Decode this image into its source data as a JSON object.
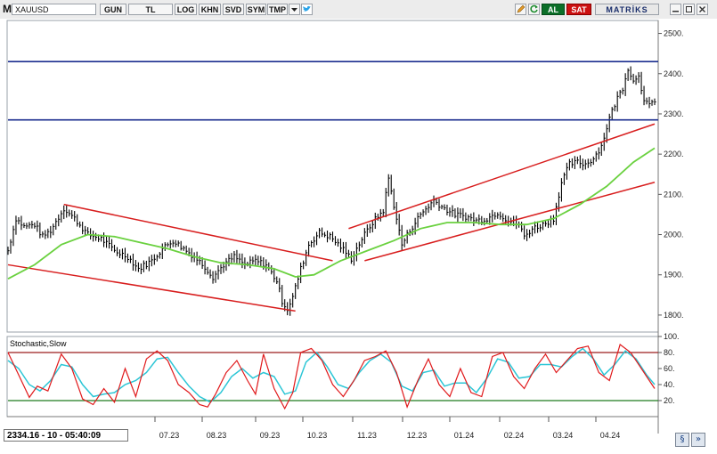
{
  "toolbar": {
    "logo": "M",
    "symbol": "XAUUSD",
    "buttons": [
      "GUN",
      "TL",
      "LOG",
      "KHN",
      "SVD",
      "SYM",
      "TMP"
    ],
    "buy": "AL",
    "sell": "SAT",
    "brand": "MATRİKS",
    "icons": [
      "dropdown-arrow-icon",
      "twitter-bird-icon",
      "pencil-icon",
      "refresh-icon",
      "minimize-icon",
      "restore-icon",
      "close-icon"
    ]
  },
  "price_axis": {
    "ticks": [
      2500,
      2400,
      2300,
      2200,
      2100,
      2000,
      1900,
      1800
    ]
  },
  "stoch_panel": {
    "title": "Stochastic,Slow",
    "ticks": [
      100,
      80,
      60,
      40,
      20
    ],
    "ticks_display": [
      "100.",
      "80.",
      "60.",
      "40.",
      "20."
    ],
    "upper_level": 80,
    "lower_level": 20
  },
  "x_axis": {
    "labels": [
      "07.23",
      "08.23",
      "09.23",
      "10.23",
      "11.23",
      "12.23",
      "01.24",
      "02.24",
      "03.24",
      "04.24"
    ]
  },
  "status": {
    "text": "2334.16 - 10 - 05:40:09"
  },
  "chart_data": {
    "type": "line",
    "note_series": "daily OHLC bars XAUUSD with moving average (green), trend channels (red), horizontal levels (blue), slow stochastic",
    "ylim": [
      1760,
      2530
    ],
    "horizontal_levels": [
      2430,
      2285
    ],
    "price_path": [
      [
        0,
        1960
      ],
      [
        3,
        2040
      ],
      [
        6,
        2020
      ],
      [
        10,
        2025
      ],
      [
        13,
        1995
      ],
      [
        16,
        2010
      ],
      [
        21,
        2065
      ],
      [
        25,
        2040
      ],
      [
        30,
        2000
      ],
      [
        35,
        1990
      ],
      [
        40,
        1960
      ],
      [
        45,
        1945
      ],
      [
        49,
        1915
      ],
      [
        54,
        1935
      ],
      [
        58,
        1965
      ],
      [
        62,
        1985
      ],
      [
        66,
        1965
      ],
      [
        70,
        1945
      ],
      [
        74,
        1920
      ],
      [
        77,
        1895
      ],
      [
        81,
        1925
      ],
      [
        85,
        1945
      ],
      [
        89,
        1925
      ],
      [
        93,
        1935
      ],
      [
        97,
        1925
      ],
      [
        101,
        1885
      ],
      [
        103,
        1835
      ],
      [
        105,
        1815
      ],
      [
        107,
        1845
      ],
      [
        110,
        1915
      ],
      [
        113,
        1975
      ],
      [
        117,
        2005
      ],
      [
        121,
        1995
      ],
      [
        125,
        1970
      ],
      [
        129,
        1940
      ],
      [
        133,
        1990
      ],
      [
        137,
        2030
      ],
      [
        141,
        2060
      ],
      [
        143,
        2140
      ],
      [
        146,
        2040
      ],
      [
        148,
        1975
      ],
      [
        151,
        2010
      ],
      [
        155,
        2050
      ],
      [
        160,
        2085
      ],
      [
        164,
        2065
      ],
      [
        168,
        2050
      ],
      [
        172,
        2045
      ],
      [
        176,
        2035
      ],
      [
        180,
        2040
      ],
      [
        184,
        2055
      ],
      [
        188,
        2035
      ],
      [
        192,
        2025
      ],
      [
        194,
        1995
      ],
      [
        197,
        2015
      ],
      [
        201,
        2025
      ],
      [
        205,
        2040
      ],
      [
        208,
        2130
      ],
      [
        211,
        2175
      ],
      [
        214,
        2180
      ],
      [
        217,
        2175
      ],
      [
        220,
        2190
      ],
      [
        223,
        2220
      ],
      [
        226,
        2290
      ],
      [
        229,
        2340
      ],
      [
        231,
        2365
      ],
      [
        233,
        2415
      ],
      [
        235,
        2380
      ],
      [
        237,
        2400
      ],
      [
        239,
        2330
      ],
      [
        241,
        2320
      ],
      [
        243,
        2335
      ]
    ],
    "ma_path": [
      [
        0,
        1890
      ],
      [
        10,
        1925
      ],
      [
        20,
        1975
      ],
      [
        30,
        2000
      ],
      [
        40,
        1995
      ],
      [
        50,
        1980
      ],
      [
        60,
        1965
      ],
      [
        70,
        1945
      ],
      [
        80,
        1930
      ],
      [
        90,
        1925
      ],
      [
        100,
        1915
      ],
      [
        108,
        1895
      ],
      [
        115,
        1900
      ],
      [
        125,
        1935
      ],
      [
        135,
        1960
      ],
      [
        145,
        1985
      ],
      [
        155,
        2015
      ],
      [
        165,
        2030
      ],
      [
        175,
        2030
      ],
      [
        185,
        2025
      ],
      [
        195,
        2025
      ],
      [
        205,
        2040
      ],
      [
        215,
        2075
      ],
      [
        225,
        2120
      ],
      [
        235,
        2180
      ],
      [
        243,
        2215
      ]
    ],
    "channels": [
      {
        "points": [
          [
            21,
            2075
          ],
          [
            122,
            1935
          ]
        ]
      },
      {
        "points": [
          [
            0,
            1925
          ],
          [
            108,
            1810
          ]
        ]
      },
      {
        "points": [
          [
            128,
            2015
          ],
          [
            243,
            2275
          ]
        ]
      },
      {
        "points": [
          [
            134,
            1935
          ],
          [
            243,
            2130
          ]
        ]
      }
    ],
    "stoch_k_path": [
      [
        0,
        80
      ],
      [
        4,
        52
      ],
      [
        8,
        24
      ],
      [
        11,
        38
      ],
      [
        15,
        32
      ],
      [
        20,
        78
      ],
      [
        24,
        60
      ],
      [
        28,
        22
      ],
      [
        32,
        15
      ],
      [
        36,
        35
      ],
      [
        40,
        18
      ],
      [
        44,
        60
      ],
      [
        48,
        25
      ],
      [
        52,
        72
      ],
      [
        56,
        82
      ],
      [
        60,
        70
      ],
      [
        64,
        40
      ],
      [
        68,
        30
      ],
      [
        72,
        15
      ],
      [
        75,
        12
      ],
      [
        78,
        28
      ],
      [
        82,
        55
      ],
      [
        86,
        70
      ],
      [
        90,
        45
      ],
      [
        93,
        28
      ],
      [
        96,
        78
      ],
      [
        100,
        35
      ],
      [
        104,
        10
      ],
      [
        107,
        30
      ],
      [
        110,
        80
      ],
      [
        114,
        85
      ],
      [
        118,
        70
      ],
      [
        122,
        40
      ],
      [
        126,
        25
      ],
      [
        130,
        45
      ],
      [
        134,
        70
      ],
      [
        138,
        75
      ],
      [
        142,
        82
      ],
      [
        146,
        55
      ],
      [
        150,
        12
      ],
      [
        154,
        45
      ],
      [
        158,
        72
      ],
      [
        162,
        40
      ],
      [
        166,
        25
      ],
      [
        170,
        60
      ],
      [
        174,
        30
      ],
      [
        178,
        25
      ],
      [
        182,
        75
      ],
      [
        186,
        80
      ],
      [
        190,
        50
      ],
      [
        194,
        35
      ],
      [
        198,
        60
      ],
      [
        202,
        78
      ],
      [
        206,
        55
      ],
      [
        210,
        70
      ],
      [
        214,
        85
      ],
      [
        218,
        88
      ],
      [
        222,
        55
      ],
      [
        226,
        45
      ],
      [
        230,
        90
      ],
      [
        234,
        80
      ],
      [
        238,
        60
      ],
      [
        242,
        40
      ],
      [
        243,
        35
      ]
    ],
    "stoch_d_path": [
      [
        0,
        70
      ],
      [
        4,
        60
      ],
      [
        8,
        40
      ],
      [
        12,
        32
      ],
      [
        16,
        45
      ],
      [
        20,
        65
      ],
      [
        24,
        62
      ],
      [
        28,
        40
      ],
      [
        32,
        25
      ],
      [
        36,
        28
      ],
      [
        40,
        30
      ],
      [
        44,
        40
      ],
      [
        48,
        45
      ],
      [
        52,
        55
      ],
      [
        56,
        72
      ],
      [
        60,
        74
      ],
      [
        64,
        55
      ],
      [
        68,
        38
      ],
      [
        72,
        25
      ],
      [
        76,
        18
      ],
      [
        80,
        30
      ],
      [
        84,
        50
      ],
      [
        88,
        60
      ],
      [
        92,
        48
      ],
      [
        96,
        55
      ],
      [
        100,
        50
      ],
      [
        104,
        28
      ],
      [
        108,
        32
      ],
      [
        112,
        68
      ],
      [
        116,
        80
      ],
      [
        120,
        62
      ],
      [
        124,
        40
      ],
      [
        128,
        35
      ],
      [
        132,
        55
      ],
      [
        136,
        70
      ],
      [
        140,
        78
      ],
      [
        144,
        68
      ],
      [
        148,
        38
      ],
      [
        152,
        32
      ],
      [
        156,
        55
      ],
      [
        160,
        58
      ],
      [
        164,
        38
      ],
      [
        168,
        42
      ],
      [
        172,
        42
      ],
      [
        176,
        30
      ],
      [
        180,
        48
      ],
      [
        184,
        72
      ],
      [
        188,
        68
      ],
      [
        192,
        48
      ],
      [
        196,
        50
      ],
      [
        200,
        65
      ],
      [
        204,
        65
      ],
      [
        208,
        62
      ],
      [
        212,
        75
      ],
      [
        216,
        85
      ],
      [
        220,
        72
      ],
      [
        224,
        52
      ],
      [
        228,
        65
      ],
      [
        232,
        82
      ],
      [
        236,
        72
      ],
      [
        240,
        52
      ],
      [
        243,
        40
      ]
    ],
    "colors": {
      "bars": "#000000",
      "moving_average": "#6ad13f",
      "channel": "#d81e1e",
      "levels": "#1b2e8f",
      "stoch_k": "#e0191b",
      "stoch_d": "#2cc6d6",
      "stoch_upper": "#9c1c1c",
      "stoch_lower": "#1f7a1f"
    }
  }
}
